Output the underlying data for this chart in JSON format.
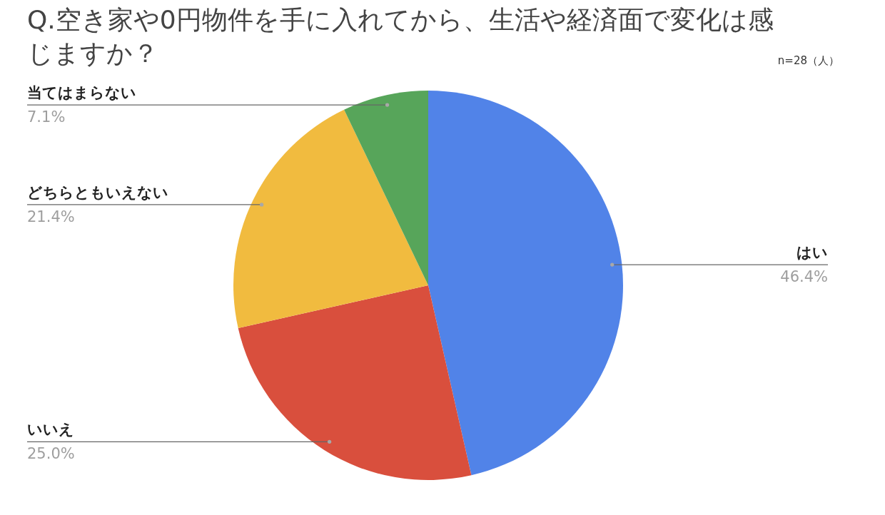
{
  "chart_data": {
    "type": "pie",
    "title": "Q.空き家や0円物件を手に入れてから、生活や経済面で変化は感じますか？",
    "categories": [
      "はい",
      "いいえ",
      "どちらともいえない",
      "当てはまらない"
    ],
    "values": [
      46.4,
      25.0,
      21.4,
      7.1
    ],
    "colors": [
      "#5183e8",
      "#d94f3d",
      "#f1bb3f",
      "#57a55a"
    ],
    "value_labels": [
      "46.4%",
      "25.0%",
      "21.4%",
      "7.1%"
    ],
    "annotations": [
      "n=28（人）"
    ]
  }
}
